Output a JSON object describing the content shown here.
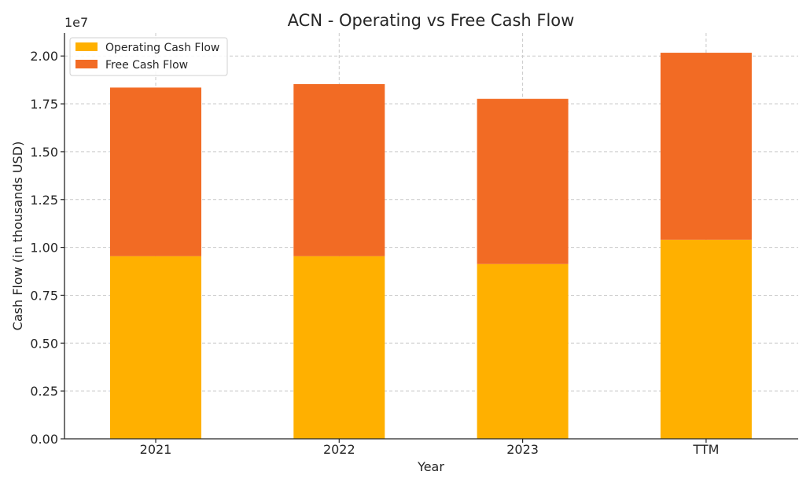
{
  "chart_data": {
    "type": "bar",
    "stacked": true,
    "title": "ACN - Operating vs Free Cash Flow",
    "xlabel": "Year",
    "ylabel": "Cash Flow (in thousands USD)",
    "y_offset_label": "1e7",
    "categories": [
      "2021",
      "2022",
      "2023",
      "TTM"
    ],
    "series": [
      {
        "name": "Operating Cash Flow",
        "color": "#FFB000",
        "values": [
          9540000,
          9540000,
          9130000,
          10400000
        ]
      },
      {
        "name": "Free Cash Flow",
        "color": "#F26B24",
        "values": [
          8810000,
          8990000,
          8630000,
          9770000
        ]
      }
    ],
    "ylim": [
      0,
      21200000
    ],
    "yticks": [
      0,
      2500000,
      5000000,
      7500000,
      10000000,
      12500000,
      15000000,
      17500000,
      20000000
    ],
    "ytick_labels": [
      "0.00",
      "0.25",
      "0.50",
      "0.75",
      "1.00",
      "1.25",
      "1.50",
      "1.75",
      "2.00"
    ],
    "grid": true,
    "legend_position": "top-left"
  }
}
